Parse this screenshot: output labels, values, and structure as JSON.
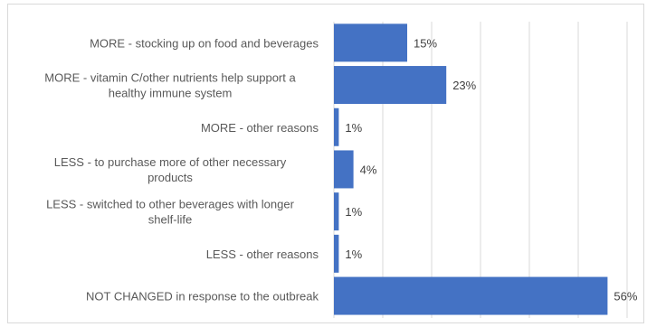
{
  "chart_data": {
    "type": "bar",
    "orientation": "horizontal",
    "categories": [
      "MORE - stocking up on food and beverages",
      "MORE - vitamin C/other nutrients help support a healthy immune system",
      "MORE - other reasons",
      "LESS -  to purchase more of other necessary products",
      "LESS - switched to other beverages with longer shelf-life",
      "LESS - other reasons",
      "NOT CHANGED in response to the outbreak"
    ],
    "category_lines": [
      [
        "MORE - stocking up on food and beverages"
      ],
      [
        "MORE - vitamin C/other nutrients help support a",
        "healthy immune system"
      ],
      [
        "MORE - other reasons"
      ],
      [
        "LESS -  to purchase more of other necessary",
        "products"
      ],
      [
        "LESS - switched to other beverages with longer",
        "shelf-life"
      ],
      [
        "LESS - other reasons"
      ],
      [
        "NOT CHANGED in response to the outbreak"
      ]
    ],
    "values": [
      15,
      23,
      1,
      4,
      1,
      1,
      56
    ],
    "value_labels": [
      "15%",
      "23%",
      "1%",
      "4%",
      "1%",
      "1%",
      "56%"
    ],
    "xlim": [
      0,
      60
    ],
    "grid": true,
    "bar_color": "#4472c4",
    "grid_color": "#d9d9d9"
  }
}
